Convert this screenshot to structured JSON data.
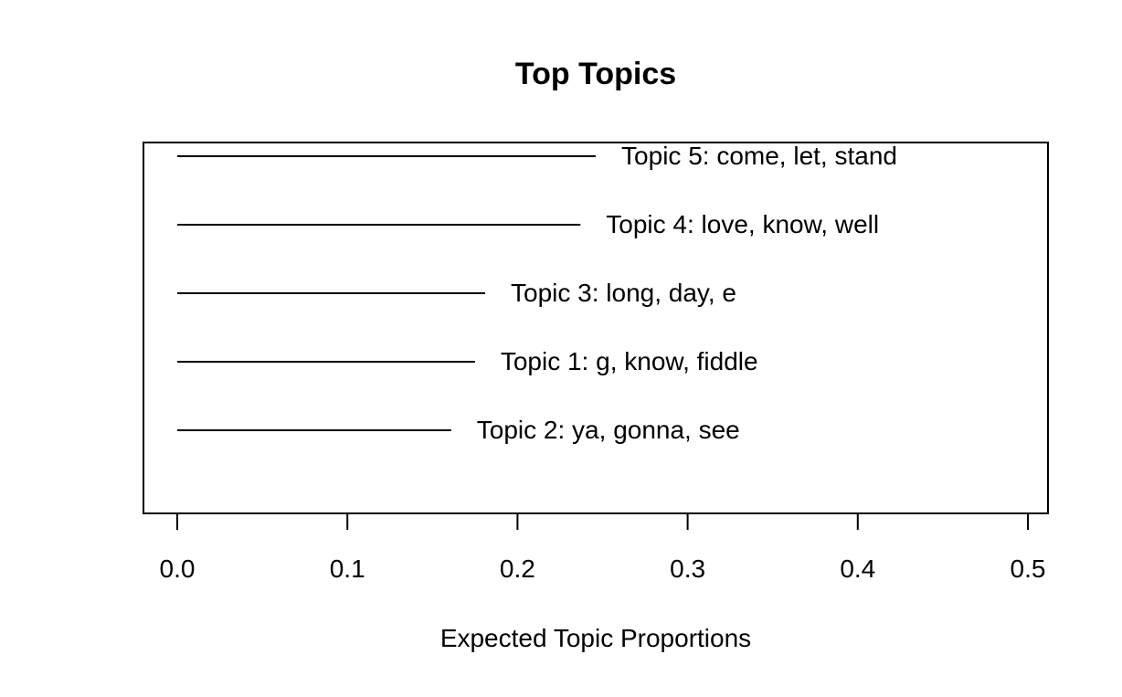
{
  "chart_data": {
    "type": "bar",
    "title": "Top Topics",
    "xlabel": "Expected Topic Proportions",
    "ylabel": "",
    "xlim": [
      0.0,
      0.5
    ],
    "x_ticks": [
      "0.0",
      "0.1",
      "0.2",
      "0.3",
      "0.4",
      "0.5"
    ],
    "grid": false,
    "categories": [
      "Topic 5: come, let, stand",
      "Topic 4: love, know, well",
      "Topic 3: long, day, e",
      "Topic 1: g, know, fiddle",
      "Topic 2: ya, gonna, see"
    ],
    "values": [
      0.246,
      0.237,
      0.181,
      0.175,
      0.161
    ]
  }
}
